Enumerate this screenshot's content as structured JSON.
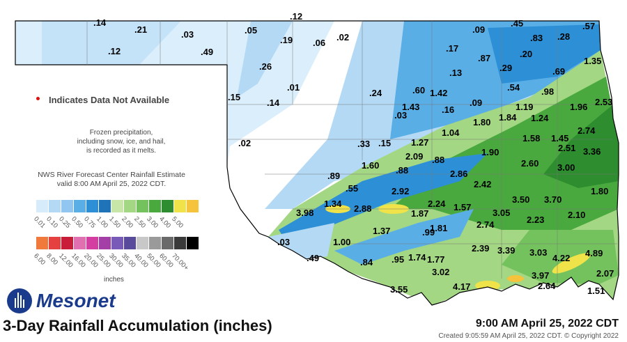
{
  "note": {
    "text": "Indicates Data Not Available",
    "dot_color": "#e01010"
  },
  "frozen_note": "Frozen precipitation, including snow, ice, and hail, is recorded as it melts.",
  "rfc_note": {
    "line1": "NWS River Forecast Center Rainfall Estimate",
    "line2": "valid 8:00 AM April 25, 2022 CDT."
  },
  "legend_row1": {
    "colors": [
      "#d7ecfb",
      "#b4d9f5",
      "#90c6ef",
      "#5aaee6",
      "#2d90d6",
      "#1f73b9",
      "#c8e6a8",
      "#a3d783",
      "#74c25e",
      "#4aa93e",
      "#2d8d2f",
      "#f0e34a",
      "#f5c43c"
    ],
    "labels": [
      "0.01",
      "0.10",
      "0.25",
      "0.50",
      "0.75",
      "1.00",
      "1.50",
      "2.00",
      "2.50",
      "3.00",
      "4.00",
      "5.00"
    ]
  },
  "legend_row2": {
    "colors": [
      "#f07a3c",
      "#e54141",
      "#c81e3a",
      "#e070b0",
      "#d43ea0",
      "#a43fa8",
      "#7a5ab8",
      "#5a4a9c",
      "#c8c8c8",
      "#9a9a9a",
      "#6a6a6a",
      "#3a3a3a",
      "#000000"
    ],
    "labels": [
      "6.00",
      "8.00",
      "12.00",
      "16.00",
      "20.00",
      "25.00",
      "30.00",
      "35.00",
      "40.00",
      "50.00",
      "60.00",
      "70.00+"
    ]
  },
  "units": "inches",
  "logo": {
    "name": "Mesonet"
  },
  "title": "3-Day Rainfall Accumulation (inches)",
  "valid_time": "9:00 AM April 25, 2022 CDT",
  "created": "Created 9:05:59 AM April 25, 2022 CDT. © Copyright 2022",
  "stations": [
    ".14",
    ".21",
    ".12",
    ".03",
    ".49",
    ".05",
    ".19",
    ".12",
    ".06",
    ".02",
    ".09",
    ".45",
    ".57",
    ".83",
    ".28",
    ".17",
    ".87",
    ".20",
    ".26",
    ".01",
    ".13",
    ".29",
    ".69",
    "1.35",
    ".15",
    ".14",
    ".24",
    ".60",
    "1.42",
    ".54",
    ".98",
    "1.43",
    ".09",
    ".16",
    "1.19",
    "1.96",
    "2.53",
    ".03",
    "1.80",
    "1.84",
    "1.24",
    "1.04",
    "1.58",
    "1.45",
    "2.74",
    ".02",
    ".33",
    ".15",
    "1.27",
    "2.51",
    "3.36",
    "2.09",
    ".88",
    "1.90",
    "1.60",
    ".88",
    "2.60",
    "3.00",
    ".89",
    "2.86",
    ".55",
    "2.92",
    "2.42",
    "1.80",
    "1.34",
    "3.50",
    "3.70",
    "3.98",
    "2.88",
    "2.24",
    "1.57",
    "1.87",
    "3.05",
    "2.23",
    "2.10",
    ".99",
    "2.74",
    "1.37",
    "1.81",
    ".03",
    "1.00",
    "2.39",
    ".49",
    ".84",
    ".95",
    "1.74",
    "1.77",
    "3.39",
    "3.03",
    "4.22",
    "4.89",
    "3.02",
    "3.97",
    "2.07",
    "3.55",
    "4.17",
    "2.64",
    "1.51"
  ]
}
